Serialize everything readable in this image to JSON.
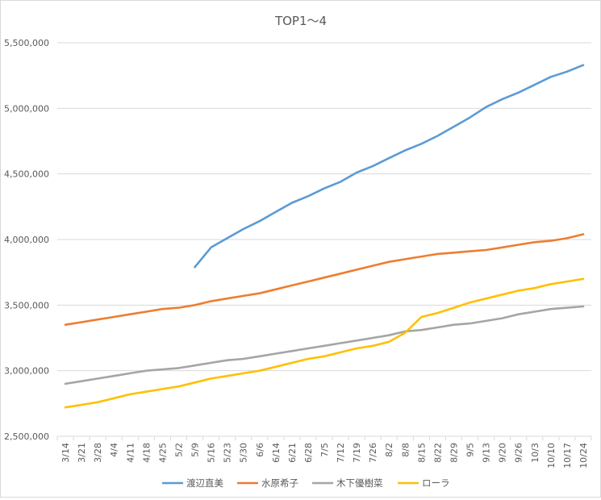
{
  "chart_data": {
    "type": "line",
    "title": "TOP1～4",
    "xlabel": "",
    "ylabel": "",
    "ylim": [
      2500000,
      5500000
    ],
    "yticks": [
      2500000,
      3000000,
      3500000,
      4000000,
      4500000,
      5000000,
      5500000
    ],
    "ytick_labels": [
      "2,500,000",
      "3,000,000",
      "3,500,000",
      "4,000,000",
      "4,500,000",
      "5,000,000",
      "5,500,000"
    ],
    "grid": "horizontal",
    "legend": "bottom",
    "categories": [
      "3/14",
      "3/21",
      "3/28",
      "4/4",
      "4/11",
      "4/18",
      "4/25",
      "5/2",
      "5/9",
      "5/16",
      "5/23",
      "5/30",
      "6/6",
      "6/14",
      "6/21",
      "6/28",
      "7/5",
      "7/12",
      "7/19",
      "7/26",
      "8/2",
      "8/8",
      "8/15",
      "8/22",
      "8/29",
      "9/5",
      "9/13",
      "9/20",
      "9/26",
      "10/3",
      "10/10",
      "10/17",
      "10/24"
    ],
    "series": [
      {
        "name": "渡辺直美",
        "color": "#5b9bd5",
        "values": [
          null,
          null,
          null,
          null,
          null,
          null,
          null,
          null,
          3790000,
          3940000,
          4010000,
          4080000,
          4140000,
          4210000,
          4280000,
          4330000,
          4390000,
          4440000,
          4510000,
          4560000,
          4620000,
          4680000,
          4730000,
          4790000,
          4860000,
          4930000,
          5010000,
          5070000,
          5120000,
          5180000,
          5240000,
          5280000,
          5330000
        ]
      },
      {
        "name": "水原希子",
        "color": "#ed7d31",
        "values": [
          3350000,
          3370000,
          3390000,
          3410000,
          3430000,
          3450000,
          3470000,
          3480000,
          3500000,
          3530000,
          3550000,
          3570000,
          3590000,
          3620000,
          3650000,
          3680000,
          3710000,
          3740000,
          3770000,
          3800000,
          3830000,
          3850000,
          3870000,
          3890000,
          3900000,
          3910000,
          3920000,
          3940000,
          3960000,
          3980000,
          3990000,
          4010000,
          4040000
        ]
      },
      {
        "name": "木下優樹菜",
        "color": "#a5a5a5",
        "values": [
          2900000,
          2920000,
          2940000,
          2960000,
          2980000,
          3000000,
          3010000,
          3020000,
          3040000,
          3060000,
          3080000,
          3090000,
          3110000,
          3130000,
          3150000,
          3170000,
          3190000,
          3210000,
          3230000,
          3250000,
          3270000,
          3300000,
          3310000,
          3330000,
          3350000,
          3360000,
          3380000,
          3400000,
          3430000,
          3450000,
          3470000,
          3480000,
          3490000
        ]
      },
      {
        "name": "ローラ",
        "color": "#ffc000",
        "values": [
          2720000,
          2740000,
          2760000,
          2790000,
          2820000,
          2840000,
          2860000,
          2880000,
          2910000,
          2940000,
          2960000,
          2980000,
          3000000,
          3030000,
          3060000,
          3090000,
          3110000,
          3140000,
          3170000,
          3190000,
          3220000,
          3290000,
          3410000,
          3440000,
          3480000,
          3520000,
          3550000,
          3580000,
          3610000,
          3630000,
          3660000,
          3680000,
          3700000
        ]
      }
    ]
  }
}
